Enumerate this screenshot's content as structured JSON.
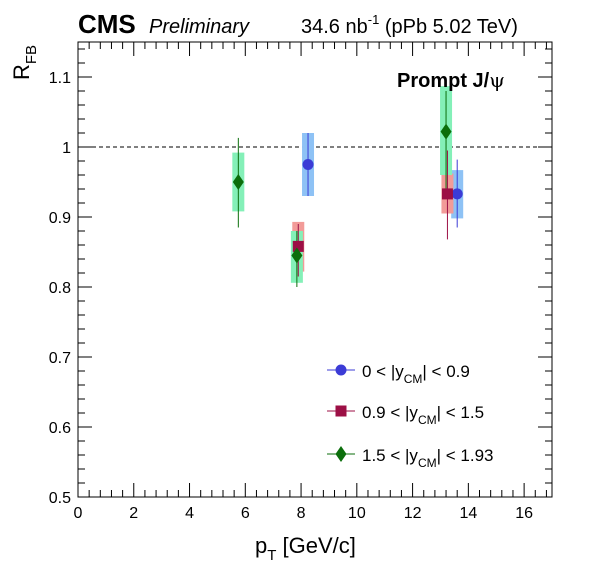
{
  "header": {
    "experiment": "CMS",
    "status": "Preliminary",
    "lumi_value": "34.6 nb",
    "lumi_exp": "-1",
    "lumi_detail": " (pPb 5.02 TeV)"
  },
  "annotation": {
    "prefix": "Prompt J/",
    "psi": "ψ"
  },
  "axes": {
    "x_title": "p",
    "x_sub": "T",
    "x_unit": " [GeV/c]",
    "y_title": "R",
    "y_sub": "FB"
  },
  "legend": {
    "entries": [
      {
        "pre": "0 < |y",
        "sub": "CM",
        "post": "| < 0.9"
      },
      {
        "pre": "0.9 < |y",
        "sub": "CM",
        "post": "| < 1.5"
      },
      {
        "pre": "1.5 < |y",
        "sub": "CM",
        "post": "| < 1.93"
      }
    ]
  },
  "chart_data": {
    "type": "scatter",
    "xlabel": "pT [GeV/c]",
    "ylabel": "RFB",
    "xlim": [
      0,
      17
    ],
    "ylim": [
      0.5,
      1.15
    ],
    "x_ticks": [
      0,
      2,
      4,
      6,
      8,
      10,
      12,
      14,
      16
    ],
    "y_ticks": [
      0.5,
      0.6,
      0.7,
      0.8,
      0.9,
      1.0,
      1.1
    ],
    "y_tick_labels": [
      "0.5",
      "0.6",
      "0.7",
      "0.8",
      "0.9",
      "1",
      "1.1"
    ],
    "reference_line": 1.0,
    "legend_position": "bottom-right",
    "series": [
      {
        "name": "0 < |yCM| < 0.9",
        "marker": "circle",
        "color": "#3b3bd6",
        "box_color": "#8ec2f5",
        "points": [
          {
            "x": 8.25,
            "y": 0.975,
            "stat_lo": 0.93,
            "stat_hi": 1.02,
            "syst_lo": 0.93,
            "syst_hi": 1.02
          },
          {
            "x": 13.6,
            "y": 0.933,
            "stat_lo": 0.885,
            "stat_hi": 0.982,
            "syst_lo": 0.898,
            "syst_hi": 0.967
          }
        ]
      },
      {
        "name": "0.9 < |yCM| < 1.5",
        "marker": "square",
        "color": "#9c0f45",
        "box_color": "#f29b98",
        "points": [
          {
            "x": 7.9,
            "y": 0.858,
            "stat_lo": 0.815,
            "stat_hi": 0.89,
            "syst_lo": 0.822,
            "syst_hi": 0.893
          },
          {
            "x": 13.25,
            "y": 0.933,
            "stat_lo": 0.868,
            "stat_hi": 0.995,
            "syst_lo": 0.905,
            "syst_hi": 0.962
          }
        ]
      },
      {
        "name": "1.5 < |yCM| < 1.93",
        "marker": "diamond",
        "color": "#0b6e0b",
        "box_color": "#84f0b8",
        "points": [
          {
            "x": 5.75,
            "y": 0.95,
            "stat_lo": 0.885,
            "stat_hi": 1.013,
            "syst_lo": 0.908,
            "syst_hi": 0.992
          },
          {
            "x": 7.85,
            "y": 0.845,
            "stat_lo": 0.8,
            "stat_hi": 0.88,
            "syst_lo": 0.806,
            "syst_hi": 0.88
          },
          {
            "x": 13.2,
            "y": 1.022,
            "stat_lo": 0.94,
            "stat_hi": 1.08,
            "syst_lo": 0.96,
            "syst_hi": 1.087
          }
        ]
      }
    ]
  }
}
